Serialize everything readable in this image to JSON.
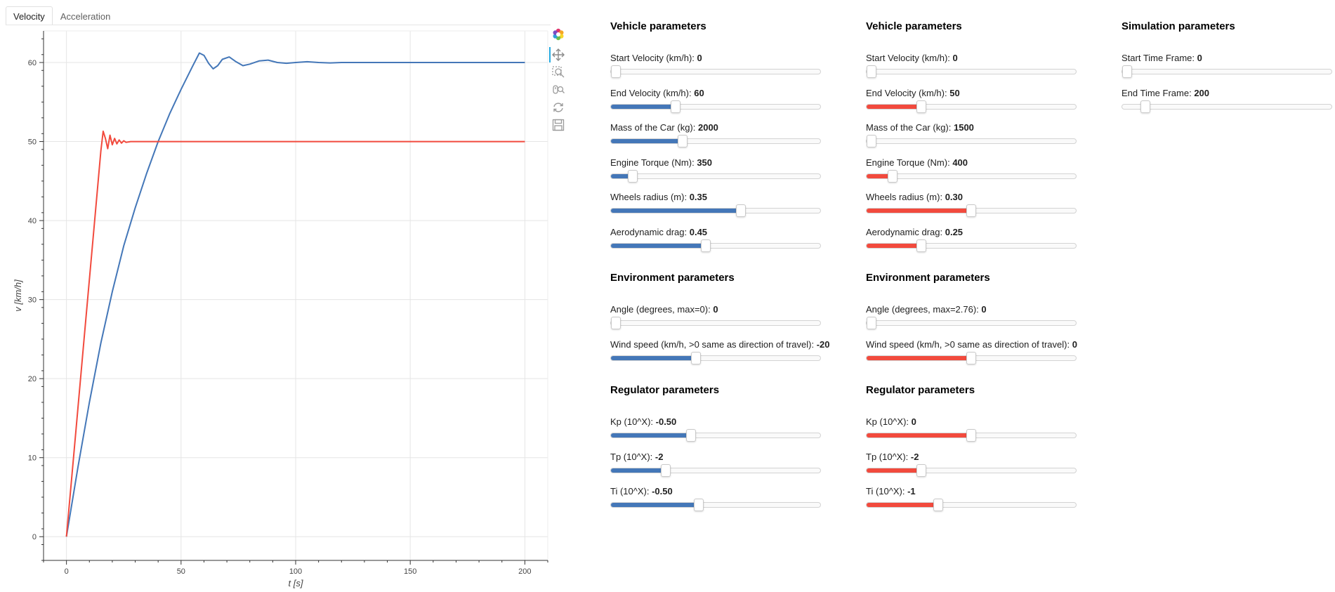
{
  "tabs": [
    {
      "label": "Velocity",
      "active": true
    },
    {
      "label": "Acceleration",
      "active": false
    }
  ],
  "colors": {
    "car1": "#4477b8",
    "car2": "#f24a3d",
    "grid": "#e5e5e5"
  },
  "toolbar": {
    "tools": [
      {
        "icon": "bokeh-logo-icon"
      },
      {
        "icon": "pan-icon"
      },
      {
        "icon": "box-zoom-icon"
      },
      {
        "icon": "wheel-zoom-icon"
      },
      {
        "icon": "reset-icon"
      },
      {
        "icon": "save-icon"
      }
    ]
  },
  "chart_data": {
    "type": "line",
    "xlabel": "t [s]",
    "ylabel": "v [km/h]",
    "xlim": [
      -10,
      210
    ],
    "ylim": [
      -3,
      64
    ],
    "xticks": [
      0,
      50,
      100,
      150,
      200
    ],
    "yticks": [
      0,
      10,
      20,
      30,
      40,
      50,
      60
    ],
    "grid": true,
    "series": [
      {
        "color": "#4477b8",
        "x": [
          0,
          5,
          10,
          15,
          20,
          25,
          30,
          35,
          40,
          45,
          50,
          55,
          58,
          60,
          62,
          64,
          66,
          68,
          71,
          74,
          77,
          80,
          84,
          88,
          92,
          96,
          100,
          105,
          110,
          115,
          120,
          130,
          140,
          160,
          200
        ],
        "y": [
          0,
          8.8,
          17,
          24.5,
          31,
          36.8,
          41.6,
          46,
          50,
          53.5,
          56.6,
          59.5,
          61.2,
          60.9,
          59.9,
          59.2,
          59.6,
          60.4,
          60.7,
          60.1,
          59.6,
          59.8,
          60.2,
          60.3,
          60.0,
          59.9,
          60.0,
          60.1,
          60.0,
          59.95,
          60.0,
          60.0,
          60.0,
          60.0,
          60.0
        ]
      },
      {
        "color": "#f24a3d",
        "x": [
          0,
          4,
          8,
          12,
          15,
          16,
          17,
          18,
          19,
          20,
          21,
          22,
          23,
          24,
          25,
          26,
          28,
          30,
          35,
          40,
          60,
          100,
          200
        ],
        "y": [
          0,
          13,
          26,
          39,
          48.8,
          51.3,
          50.4,
          49.1,
          50.8,
          49.6,
          50.4,
          49.7,
          50.2,
          49.8,
          50.1,
          49.9,
          50.0,
          50.0,
          50.0,
          50.0,
          50.0,
          50.0,
          50.0
        ]
      }
    ]
  },
  "panels": [
    {
      "color_key": "car1",
      "sections": [
        {
          "title": "Vehicle parameters",
          "params": [
            {
              "label": "Start Velocity (km/h):",
              "value": "0",
              "fraction": 0.0
            },
            {
              "label": "End Velocity (km/h):",
              "value": "60",
              "fraction": 0.3
            },
            {
              "label": "Mass of the Car (kg):",
              "value": "2000",
              "fraction": 0.333
            },
            {
              "label": "Engine Torque (Nm):",
              "value": "350",
              "fraction": 0.085
            },
            {
              "label": "Wheels radius (m):",
              "value": "0.35",
              "fraction": 0.625
            },
            {
              "label": "Aerodynamic drag:",
              "value": "0.45",
              "fraction": 0.45
            }
          ]
        },
        {
          "title": "Environment parameters",
          "params": [
            {
              "label": "Angle (degrees, max=0):",
              "value": "0",
              "fraction": 0.0
            },
            {
              "label": "Wind speed (km/h, >0 same as direction of travel):",
              "value": "-20",
              "fraction": 0.4
            }
          ]
        },
        {
          "title": "Regulator parameters",
          "params": [
            {
              "label": "Kp (10^X):",
              "value": "-0.50",
              "fraction": 0.375
            },
            {
              "label": "Tp (10^X):",
              "value": "-2",
              "fraction": 0.25
            },
            {
              "label": "Ti (10^X):",
              "value": "-0.50",
              "fraction": 0.417
            }
          ]
        }
      ]
    },
    {
      "color_key": "car2",
      "sections": [
        {
          "title": "Vehicle parameters",
          "params": [
            {
              "label": "Start Velocity (km/h):",
              "value": "0",
              "fraction": 0.0
            },
            {
              "label": "End Velocity (km/h):",
              "value": "50",
              "fraction": 0.25
            },
            {
              "label": "Mass of the Car (kg):",
              "value": "1500",
              "fraction": 0.0
            },
            {
              "label": "Engine Torque (Nm):",
              "value": "400",
              "fraction": 0.105
            },
            {
              "label": "Wheels radius (m):",
              "value": "0.30",
              "fraction": 0.5
            },
            {
              "label": "Aerodynamic drag:",
              "value": "0.25",
              "fraction": 0.25
            }
          ]
        },
        {
          "title": "Environment parameters",
          "params": [
            {
              "label": "Angle (degrees, max=2.76):",
              "value": "0",
              "fraction": 0.0
            },
            {
              "label": "Wind speed (km/h, >0 same as direction of travel):",
              "value": "0",
              "fraction": 0.5
            }
          ]
        },
        {
          "title": "Regulator parameters",
          "params": [
            {
              "label": "Kp (10^X):",
              "value": "0",
              "fraction": 0.5
            },
            {
              "label": "Tp (10^X):",
              "value": "-2",
              "fraction": 0.25
            },
            {
              "label": "Ti (10^X):",
              "value": "-1",
              "fraction": 0.333
            }
          ]
        }
      ]
    },
    {
      "color_key": "none",
      "sections": [
        {
          "title": "Simulation parameters",
          "params": [
            {
              "label": "Start Time Frame:",
              "value": "0",
              "fraction": 0.0
            },
            {
              "label": "End Time Frame:",
              "value": "200",
              "fraction": 0.09
            }
          ]
        }
      ]
    }
  ]
}
